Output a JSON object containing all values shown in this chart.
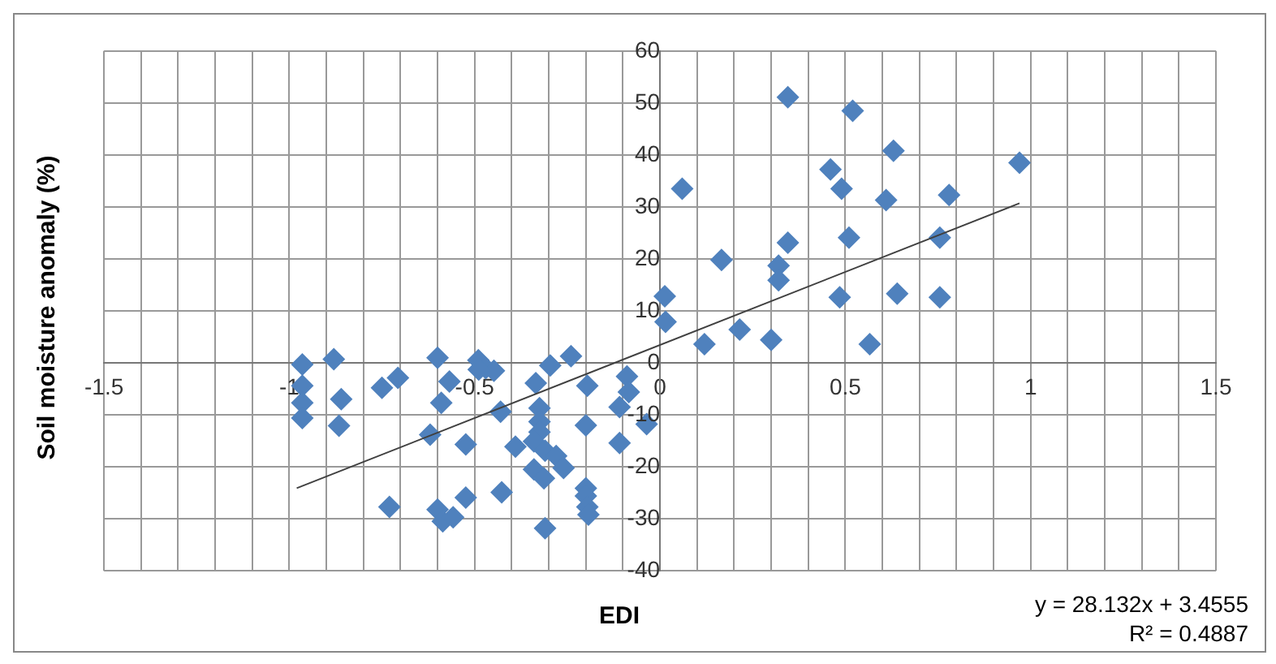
{
  "chart_data": {
    "type": "scatter",
    "xlabel": "EDI",
    "ylabel": "Soil moisture anomaly (%)",
    "xlim": [
      -1.5,
      1.5
    ],
    "xticks": [
      -1.5,
      {
        "value": -1.4,
        "label": null
      },
      {
        "value": -1.3,
        "label": null
      },
      {
        "value": -1.2,
        "label": null
      },
      {
        "value": -1.1,
        "label": null
      },
      -1,
      {
        "value": -0.9,
        "label": null
      },
      {
        "value": -0.8,
        "label": null
      },
      {
        "value": -0.7,
        "label": null
      },
      {
        "value": -0.6,
        "label": null
      },
      -0.5,
      {
        "value": -0.4,
        "label": null
      },
      {
        "value": -0.3,
        "label": null
      },
      {
        "value": -0.2,
        "label": null
      },
      {
        "value": -0.1,
        "label": null
      },
      0,
      {
        "value": 0.1,
        "label": null
      },
      {
        "value": 0.2,
        "label": null
      },
      {
        "value": 0.3,
        "label": null
      },
      {
        "value": 0.4,
        "label": null
      },
      0.5,
      {
        "value": 0.6,
        "label": null
      },
      {
        "value": 0.7,
        "label": null
      },
      {
        "value": 0.8,
        "label": null
      },
      {
        "value": 0.9,
        "label": null
      },
      1,
      {
        "value": 1.1,
        "label": null
      },
      {
        "value": 1.2,
        "label": null
      },
      {
        "value": 1.3,
        "label": null
      },
      {
        "value": 1.4,
        "label": null
      },
      1.5
    ],
    "ylim": [
      -40,
      60
    ],
    "yticks": [
      -40,
      -30,
      -20,
      -10,
      0,
      10,
      20,
      30,
      40,
      50,
      60
    ],
    "grid": true,
    "series": [
      {
        "marker": "diamond",
        "color": "#4f81bd",
        "x": [
          0.345,
          0.52,
          0.63,
          0.97,
          0.46,
          0.49,
          0.06,
          0.78,
          0.61,
          0.755,
          0.51,
          0.345,
          0.166,
          0.32,
          0.32,
          0.013,
          0.485,
          0.64,
          0.755,
          0.015,
          0.215,
          0.12,
          0.3,
          0.566,
          -0.965,
          -0.88,
          -0.965,
          -0.86,
          -0.965,
          -0.965,
          -0.866,
          -0.75,
          -0.707,
          -0.73,
          -0.6,
          -0.568,
          -0.59,
          -0.62,
          -0.524,
          -0.6,
          -0.586,
          -0.558,
          -0.524,
          -0.427,
          -0.49,
          -0.47,
          -0.448,
          -0.489,
          -0.43,
          -0.39,
          -0.335,
          -0.296,
          -0.24,
          -0.325,
          -0.325,
          -0.325,
          -0.34,
          -0.31,
          -0.34,
          -0.313,
          -0.28,
          -0.26,
          -0.31,
          -0.196,
          -0.2,
          -0.2,
          -0.2,
          -0.196,
          -0.193,
          -0.109,
          -0.089,
          -0.109,
          -0.084,
          -0.036
        ],
        "values": [
          51.1,
          48.5,
          40.8,
          38.5,
          37.2,
          33.5,
          33.5,
          32.3,
          31.3,
          24.1,
          24.1,
          23.1,
          19.8,
          18.7,
          15.9,
          12.8,
          12.6,
          13.3,
          12.6,
          7.9,
          6.4,
          3.6,
          4.4,
          3.6,
          -0.3,
          0.7,
          -4.4,
          -7.0,
          -7.7,
          -10.6,
          -12.1,
          -4.8,
          -2.9,
          -27.7,
          1.0,
          -3.6,
          -7.7,
          -13.8,
          -15.7,
          -28.2,
          -30.5,
          -29.7,
          -25.9,
          -24.9,
          0.5,
          -1.0,
          -1.5,
          -1.3,
          -9.4,
          -16.1,
          -3.9,
          -0.5,
          1.3,
          -8.7,
          -11.3,
          -13.3,
          -15.1,
          -16.9,
          -20.5,
          -22.2,
          -17.9,
          -20.2,
          -31.8,
          -4.4,
          -12.0,
          -24.1,
          -25.6,
          -27.7,
          -29.2,
          -8.5,
          -2.6,
          -15.4,
          -5.6,
          -11.8
        ]
      },
      {
        "type": "line",
        "marker": "none",
        "color": "#404040",
        "x": [
          -0.98,
          0.97
        ],
        "values": [
          -24.1,
          30.7
        ]
      }
    ],
    "annotations": [
      "y = 28.132x + 3.4555",
      "R² = 0.4887"
    ]
  }
}
